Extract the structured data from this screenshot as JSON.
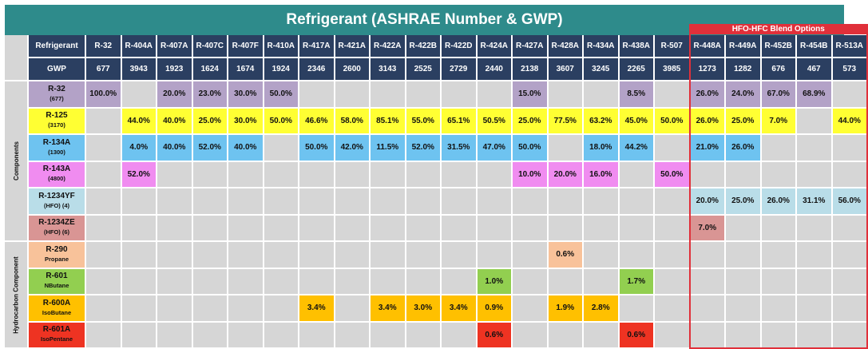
{
  "title": "Refrigerant (ASHRAE Number & GWP)",
  "hfo_label": "HFO-HFC Blend Options",
  "header_labels": {
    "refrigerant": "Refrigerant",
    "gwp": "GWP"
  },
  "refrigerants": [
    "R-32",
    "R-404A",
    "R-407A",
    "R-407C",
    "R-407F",
    "R-410A",
    "R-417A",
    "R-421A",
    "R-422A",
    "R-422B",
    "R-422D",
    "R-424A",
    "R-427A",
    "R-428A",
    "R-434A",
    "R-438A",
    "R-507",
    "R-448A",
    "R-449A",
    "R-452B",
    "R-454B",
    "R-513A"
  ],
  "gwp": [
    "677",
    "3943",
    "1923",
    "1624",
    "1674",
    "1924",
    "2346",
    "2600",
    "3143",
    "2525",
    "2729",
    "2440",
    "2138",
    "3607",
    "3245",
    "2265",
    "3985",
    "1273",
    "1282",
    "676",
    "467",
    "573"
  ],
  "groups": [
    {
      "label": "Components",
      "rows": 6
    },
    {
      "label": "Hydrocarbon Component",
      "rows": 4
    }
  ],
  "rows": [
    {
      "name": "R-32",
      "sub": "(677)",
      "color": "#b3a2c7",
      "values": [
        "100.0%",
        "",
        "20.0%",
        "23.0%",
        "30.0%",
        "50.0%",
        "",
        "",
        "",
        "",
        "",
        "",
        "15.0%",
        "",
        "",
        "8.5%",
        "",
        "26.0%",
        "24.0%",
        "67.0%",
        "68.9%",
        ""
      ]
    },
    {
      "name": "R-125",
      "sub": "(3170)",
      "color": "#ffff33",
      "values": [
        "",
        "44.0%",
        "40.0%",
        "25.0%",
        "30.0%",
        "50.0%",
        "46.6%",
        "58.0%",
        "85.1%",
        "55.0%",
        "65.1%",
        "50.5%",
        "25.0%",
        "77.5%",
        "63.2%",
        "45.0%",
        "50.0%",
        "26.0%",
        "25.0%",
        "7.0%",
        "",
        "44.0%"
      ]
    },
    {
      "name": "R-134A",
      "sub": "(1300)",
      "color": "#6ec3f0",
      "values": [
        "",
        "4.0%",
        "40.0%",
        "52.0%",
        "40.0%",
        "",
        "50.0%",
        "42.0%",
        "11.5%",
        "52.0%",
        "31.5%",
        "47.0%",
        "50.0%",
        "",
        "18.0%",
        "44.2%",
        "",
        "21.0%",
        "26.0%",
        "",
        "",
        ""
      ]
    },
    {
      "name": "R-143A",
      "sub": "(4800)",
      "color": "#f08cf0",
      "values": [
        "",
        "52.0%",
        "",
        "",
        "",
        "",
        "",
        "",
        "",
        "",
        "",
        "",
        "10.0%",
        "20.0%",
        "16.0%",
        "",
        "50.0%",
        "",
        "",
        "",
        "",
        ""
      ]
    },
    {
      "name": "R-1234YF",
      "sub": "(HFO) (4)",
      "color": "#b9dde8",
      "values": [
        "",
        "",
        "",
        "",
        "",
        "",
        "",
        "",
        "",
        "",
        "",
        "",
        "",
        "",
        "",
        "",
        "",
        "20.0%",
        "25.0%",
        "26.0%",
        "31.1%",
        "56.0%"
      ]
    },
    {
      "name": "R-1234ZE",
      "sub": "(HFO) (6)",
      "color": "#d99594",
      "values": [
        "",
        "",
        "",
        "",
        "",
        "",
        "",
        "",
        "",
        "",
        "",
        "",
        "",
        "",
        "",
        "",
        "",
        "7.0%",
        "",
        "",
        "",
        ""
      ]
    },
    {
      "name": "R-290",
      "sub": "Propane",
      "color": "#f8c29a",
      "values": [
        "",
        "",
        "",
        "",
        "",
        "",
        "",
        "",
        "",
        "",
        "",
        "",
        "",
        "0.6%",
        "",
        "",
        "",
        "",
        "",
        "",
        "",
        ""
      ]
    },
    {
      "name": "R-601",
      "sub": "NButane",
      "color": "#92cf50",
      "values": [
        "",
        "",
        "",
        "",
        "",
        "",
        "",
        "",
        "",
        "",
        "",
        "1.0%",
        "",
        "",
        "",
        "1.7%",
        "",
        "",
        "",
        "",
        "",
        ""
      ]
    },
    {
      "name": "R-600A",
      "sub": "IsoButane",
      "color": "#ffc000",
      "values": [
        "",
        "",
        "",
        "",
        "",
        "",
        "3.4%",
        "",
        "3.4%",
        "3.0%",
        "3.4%",
        "0.9%",
        "",
        "1.9%",
        "2.8%",
        "",
        "",
        "",
        "",
        "",
        "",
        ""
      ]
    },
    {
      "name": "R-601A",
      "sub": "IsoPentane",
      "color": "#ee3322",
      "values": [
        "",
        "",
        "",
        "",
        "",
        "",
        "",
        "",
        "",
        "",
        "",
        "0.6%",
        "",
        "",
        "",
        "0.6%",
        "",
        "",
        "",
        "",
        "",
        ""
      ]
    }
  ]
}
